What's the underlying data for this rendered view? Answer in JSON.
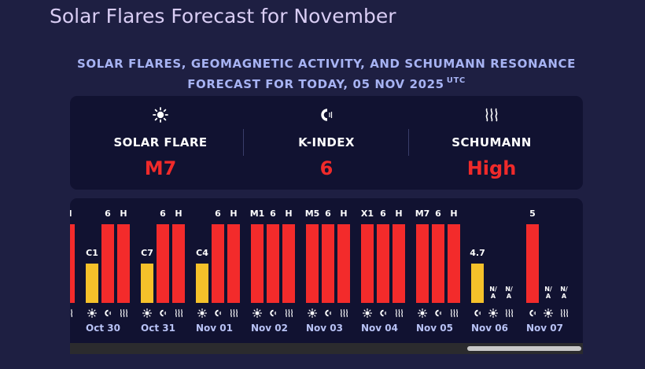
{
  "page_title": "Solar Flares Forecast for November",
  "subtitle": {
    "line1": "SOLAR FLARES, GEOMAGNETIC ACTIVITY, AND SCHUMANN RESONANCE",
    "line2": "FORECAST FOR TODAY, 05 NOV 2025",
    "tz": "UTC"
  },
  "summary": {
    "solar_flare": {
      "icon": "sun-icon",
      "label": "SOLAR FLARE",
      "value": "M7"
    },
    "k_index": {
      "icon": "magnet-icon",
      "label": "K-INDEX",
      "value": "6"
    },
    "schumann": {
      "icon": "waves-icon",
      "label": "SCHUMANN",
      "value": "High"
    }
  },
  "colors": {
    "background": "#1e1f42",
    "card": "#111231",
    "high": "#f32b2b",
    "low": "#f5c12a",
    "title": "#d9cdf4",
    "subtitle": "#a7b3f3",
    "date": "#b8c2f5"
  },
  "chart_data": {
    "type": "bar",
    "series_types": [
      "solar flare",
      "k-index",
      "schumann"
    ],
    "categories": [
      "(partial)",
      "Oct 30",
      "Oct 31",
      "Nov 01",
      "Nov 02",
      "Nov 03",
      "Nov 04",
      "Nov 05",
      "Nov 06",
      "Nov 07"
    ],
    "days": [
      {
        "date": "",
        "partial": true,
        "items": [
          {
            "kind": "schumann",
            "label": "H",
            "level": "high",
            "height": 1.0
          }
        ]
      },
      {
        "date": "Oct 30",
        "items": [
          {
            "kind": "flare",
            "label": "C1",
            "level": "low",
            "height": 0.5
          },
          {
            "kind": "kindex",
            "label": "6",
            "level": "high",
            "height": 1.0
          },
          {
            "kind": "schumann",
            "label": "H",
            "level": "high",
            "height": 1.0
          }
        ]
      },
      {
        "date": "Oct 31",
        "items": [
          {
            "kind": "flare",
            "label": "C7",
            "level": "low",
            "height": 0.5
          },
          {
            "kind": "kindex",
            "label": "6",
            "level": "high",
            "height": 1.0
          },
          {
            "kind": "schumann",
            "label": "H",
            "level": "high",
            "height": 1.0
          }
        ]
      },
      {
        "date": "Nov 01",
        "items": [
          {
            "kind": "flare",
            "label": "C4",
            "level": "low",
            "height": 0.5
          },
          {
            "kind": "kindex",
            "label": "6",
            "level": "high",
            "height": 1.0
          },
          {
            "kind": "schumann",
            "label": "H",
            "level": "high",
            "height": 1.0
          }
        ]
      },
      {
        "date": "Nov 02",
        "items": [
          {
            "kind": "flare",
            "label": "M1",
            "level": "high",
            "height": 1.0
          },
          {
            "kind": "kindex",
            "label": "6",
            "level": "high",
            "height": 1.0
          },
          {
            "kind": "schumann",
            "label": "H",
            "level": "high",
            "height": 1.0
          }
        ]
      },
      {
        "date": "Nov 03",
        "items": [
          {
            "kind": "flare",
            "label": "M5",
            "level": "high",
            "height": 1.0
          },
          {
            "kind": "kindex",
            "label": "6",
            "level": "high",
            "height": 1.0
          },
          {
            "kind": "schumann",
            "label": "H",
            "level": "high",
            "height": 1.0
          }
        ]
      },
      {
        "date": "Nov 04",
        "items": [
          {
            "kind": "flare",
            "label": "X1",
            "level": "high",
            "height": 1.0
          },
          {
            "kind": "kindex",
            "label": "6",
            "level": "high",
            "height": 1.0
          },
          {
            "kind": "schumann",
            "label": "H",
            "level": "high",
            "height": 1.0
          }
        ]
      },
      {
        "date": "Nov 05",
        "items": [
          {
            "kind": "flare",
            "label": "M7",
            "level": "high",
            "height": 1.0
          },
          {
            "kind": "kindex",
            "label": "6",
            "level": "high",
            "height": 1.0
          },
          {
            "kind": "schumann",
            "label": "H",
            "level": "high",
            "height": 1.0
          }
        ]
      },
      {
        "date": "Nov 06",
        "items": [
          {
            "kind": "kindex",
            "label": "4.7",
            "level": "low",
            "height": 0.5
          },
          {
            "kind": "flare",
            "label": "N/A",
            "level": "na",
            "height": 0
          },
          {
            "kind": "schumann",
            "label": "N/A",
            "level": "na",
            "height": 0
          }
        ]
      },
      {
        "date": "Nov 07",
        "items": [
          {
            "kind": "kindex",
            "label": "5",
            "level": "high",
            "height": 1.0
          },
          {
            "kind": "flare",
            "label": "N/A",
            "level": "na",
            "height": 0
          },
          {
            "kind": "schumann",
            "label": "N/A",
            "level": "na",
            "height": 0
          }
        ]
      }
    ]
  },
  "scrollbar": {
    "position": 0.78
  }
}
